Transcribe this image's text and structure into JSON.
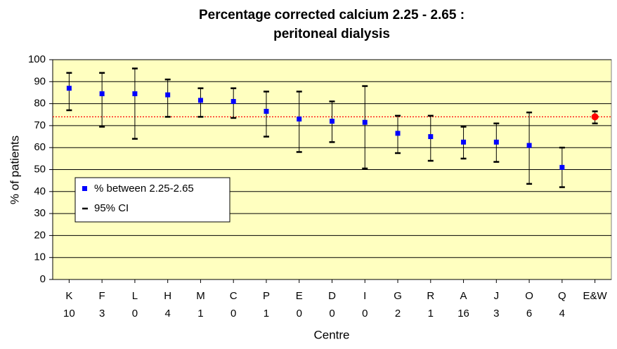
{
  "chart_data": {
    "type": "errorbar",
    "title": [
      "Percentage corrected calcium 2.25 - 2.65 :",
      "peritoneal dialysis"
    ],
    "xlabel": "Centre",
    "ylabel": "% of patients",
    "categories": [
      "K",
      "F",
      "L",
      "H",
      "M",
      "C",
      "P",
      "E",
      "D",
      "I",
      "G",
      "R",
      "A",
      "J",
      "O",
      "Q",
      "E&W"
    ],
    "category_counts": [
      10,
      3,
      0,
      4,
      1,
      0,
      1,
      0,
      0,
      0,
      2,
      1,
      16,
      3,
      6,
      4,
      null
    ],
    "series": [
      {
        "name": "% between 2.25-2.65",
        "color": "#0000ff",
        "point_colors": [
          "#0000ff",
          "#0000ff",
          "#0000ff",
          "#0000ff",
          "#0000ff",
          "#0000ff",
          "#0000ff",
          "#0000ff",
          "#0000ff",
          "#0000ff",
          "#0000ff",
          "#0000ff",
          "#0000ff",
          "#0000ff",
          "#0000ff",
          "#0000ff",
          "#ff0000"
        ],
        "values": [
          87,
          84.5,
          84.5,
          84,
          81.5,
          81,
          76.5,
          73,
          72,
          71.5,
          66.5,
          65,
          62.5,
          62.5,
          61,
          51,
          74
        ]
      },
      {
        "name": "95% CI",
        "color": "#000000",
        "lower": [
          77,
          69.5,
          64,
          74,
          74,
          73.5,
          65,
          58,
          62.5,
          50.5,
          57.5,
          54,
          55,
          53.5,
          43.5,
          42,
          71
        ],
        "upper": [
          94,
          94,
          96,
          91,
          87,
          87,
          85.5,
          85.5,
          81,
          88,
          74.5,
          74.5,
          69.5,
          71,
          76,
          60,
          76.5
        ]
      }
    ],
    "reference_line": 74,
    "reference_color": "#ff0000",
    "ylim": [
      0,
      100
    ],
    "yticks": [
      0,
      10,
      20,
      30,
      40,
      50,
      60,
      70,
      80,
      90,
      100
    ],
    "grid": true,
    "background": "#ffffc0"
  }
}
